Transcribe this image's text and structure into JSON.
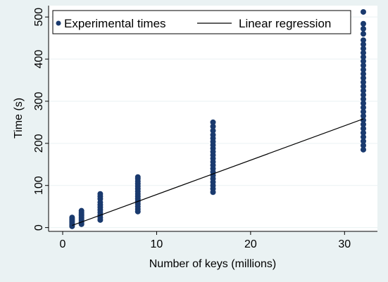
{
  "chart_data": {
    "type": "scatter",
    "title": "",
    "xlabel": "Number of keys (millions)",
    "ylabel": "Time (s)",
    "xlim": [
      -1.5,
      33.5
    ],
    "ylim": [
      -9,
      527
    ],
    "xticks": [
      0,
      10,
      20,
      30
    ],
    "yticks": [
      0,
      100,
      200,
      300,
      400,
      500
    ],
    "grid": true,
    "legend_position": "top",
    "series": [
      {
        "name": "Experimental times",
        "kind": "points",
        "color": "#1a3a6e",
        "points": [
          {
            "x": 1,
            "y": 3
          },
          {
            "x": 1,
            "y": 6
          },
          {
            "x": 1,
            "y": 9
          },
          {
            "x": 1,
            "y": 12
          },
          {
            "x": 1,
            "y": 15
          },
          {
            "x": 1,
            "y": 18
          },
          {
            "x": 1,
            "y": 21
          },
          {
            "x": 1,
            "y": 24
          },
          {
            "x": 2,
            "y": 8
          },
          {
            "x": 2,
            "y": 12
          },
          {
            "x": 2,
            "y": 16
          },
          {
            "x": 2,
            "y": 20
          },
          {
            "x": 2,
            "y": 24
          },
          {
            "x": 2,
            "y": 28
          },
          {
            "x": 2,
            "y": 32
          },
          {
            "x": 2,
            "y": 36
          },
          {
            "x": 2,
            "y": 40
          },
          {
            "x": 4,
            "y": 18
          },
          {
            "x": 4,
            "y": 24
          },
          {
            "x": 4,
            "y": 30
          },
          {
            "x": 4,
            "y": 36
          },
          {
            "x": 4,
            "y": 42
          },
          {
            "x": 4,
            "y": 48
          },
          {
            "x": 4,
            "y": 54
          },
          {
            "x": 4,
            "y": 60
          },
          {
            "x": 4,
            "y": 68
          },
          {
            "x": 4,
            "y": 74
          },
          {
            "x": 4,
            "y": 80
          },
          {
            "x": 8,
            "y": 38
          },
          {
            "x": 8,
            "y": 44
          },
          {
            "x": 8,
            "y": 50
          },
          {
            "x": 8,
            "y": 56
          },
          {
            "x": 8,
            "y": 62
          },
          {
            "x": 8,
            "y": 68
          },
          {
            "x": 8,
            "y": 74
          },
          {
            "x": 8,
            "y": 80
          },
          {
            "x": 8,
            "y": 86
          },
          {
            "x": 8,
            "y": 92
          },
          {
            "x": 8,
            "y": 98
          },
          {
            "x": 8,
            "y": 104
          },
          {
            "x": 8,
            "y": 110
          },
          {
            "x": 8,
            "y": 116
          },
          {
            "x": 8,
            "y": 120
          },
          {
            "x": 16,
            "y": 84
          },
          {
            "x": 16,
            "y": 92
          },
          {
            "x": 16,
            "y": 100
          },
          {
            "x": 16,
            "y": 108
          },
          {
            "x": 16,
            "y": 116
          },
          {
            "x": 16,
            "y": 124
          },
          {
            "x": 16,
            "y": 132
          },
          {
            "x": 16,
            "y": 140
          },
          {
            "x": 16,
            "y": 148
          },
          {
            "x": 16,
            "y": 156
          },
          {
            "x": 16,
            "y": 164
          },
          {
            "x": 16,
            "y": 172
          },
          {
            "x": 16,
            "y": 180
          },
          {
            "x": 16,
            "y": 188
          },
          {
            "x": 16,
            "y": 196
          },
          {
            "x": 16,
            "y": 204
          },
          {
            "x": 16,
            "y": 212
          },
          {
            "x": 16,
            "y": 220
          },
          {
            "x": 16,
            "y": 230
          },
          {
            "x": 16,
            "y": 240
          },
          {
            "x": 16,
            "y": 250
          },
          {
            "x": 32,
            "y": 185
          },
          {
            "x": 32,
            "y": 195
          },
          {
            "x": 32,
            "y": 205
          },
          {
            "x": 32,
            "y": 215
          },
          {
            "x": 32,
            "y": 225
          },
          {
            "x": 32,
            "y": 235
          },
          {
            "x": 32,
            "y": 245
          },
          {
            "x": 32,
            "y": 255
          },
          {
            "x": 32,
            "y": 265
          },
          {
            "x": 32,
            "y": 275
          },
          {
            "x": 32,
            "y": 285
          },
          {
            "x": 32,
            "y": 295
          },
          {
            "x": 32,
            "y": 305
          },
          {
            "x": 32,
            "y": 315
          },
          {
            "x": 32,
            "y": 325
          },
          {
            "x": 32,
            "y": 335
          },
          {
            "x": 32,
            "y": 345
          },
          {
            "x": 32,
            "y": 355
          },
          {
            "x": 32,
            "y": 365
          },
          {
            "x": 32,
            "y": 375
          },
          {
            "x": 32,
            "y": 385
          },
          {
            "x": 32,
            "y": 395
          },
          {
            "x": 32,
            "y": 405
          },
          {
            "x": 32,
            "y": 415
          },
          {
            "x": 32,
            "y": 425
          },
          {
            "x": 32,
            "y": 435
          },
          {
            "x": 32,
            "y": 445
          },
          {
            "x": 32,
            "y": 460
          },
          {
            "x": 32,
            "y": 472
          },
          {
            "x": 32,
            "y": 484
          },
          {
            "x": 32,
            "y": 512
          }
        ]
      },
      {
        "name": "Linear regression",
        "kind": "line",
        "color": "#000000",
        "points": [
          {
            "x": 1,
            "y": 5
          },
          {
            "x": 32,
            "y": 258
          }
        ]
      }
    ]
  }
}
